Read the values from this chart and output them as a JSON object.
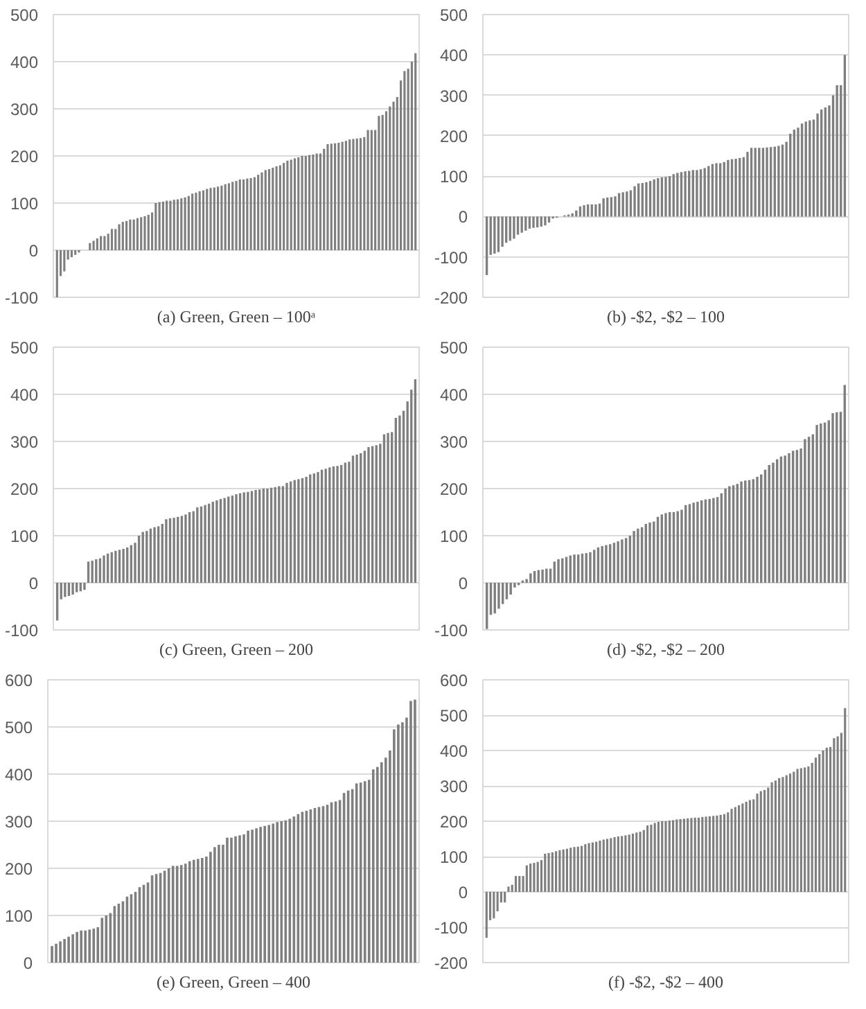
{
  "chart_data": [
    {
      "type": "bar",
      "title": "(a) Green, Green – 100ᵃ",
      "color": "#7f7f7f",
      "ylim": [
        -100,
        500
      ],
      "yticks": [
        -100,
        0,
        100,
        200,
        300,
        400,
        500
      ],
      "grid": "y",
      "tick_labels": "y",
      "values": [
        -100,
        -55,
        -45,
        -20,
        -15,
        -10,
        -5,
        0,
        0,
        15,
        20,
        25,
        30,
        30,
        35,
        45,
        45,
        55,
        60,
        62,
        65,
        65,
        68,
        70,
        72,
        75,
        80,
        100,
        102,
        103,
        105,
        105,
        107,
        108,
        110,
        112,
        115,
        120,
        122,
        125,
        127,
        130,
        132,
        133,
        135,
        137,
        140,
        142,
        145,
        147,
        150,
        150,
        152,
        153,
        155,
        160,
        165,
        170,
        172,
        175,
        178,
        180,
        185,
        190,
        192,
        195,
        197,
        200,
        200,
        202,
        203,
        205,
        205,
        215,
        225,
        226,
        227,
        228,
        230,
        232,
        235,
        236,
        237,
        238,
        240,
        255,
        255,
        255,
        285,
        287,
        295,
        305,
        315,
        325,
        360,
        380,
        385,
        400,
        418
      ]
    },
    {
      "type": "bar",
      "title": "(b) -$2, -$2 – 100",
      "color": "#7f7f7f",
      "ylim": [
        -200,
        500
      ],
      "yticks": [
        -200,
        -100,
        0,
        100,
        200,
        300,
        400,
        500
      ],
      "grid": "y",
      "tick_labels": "y",
      "values": [
        -145,
        -95,
        -92,
        -88,
        -75,
        -65,
        -60,
        -55,
        -45,
        -40,
        -35,
        -30,
        -28,
        -27,
        -25,
        -22,
        -15,
        -5,
        -3,
        0,
        3,
        5,
        8,
        15,
        25,
        28,
        30,
        30,
        30,
        32,
        45,
        47,
        48,
        50,
        58,
        60,
        62,
        65,
        75,
        82,
        83,
        85,
        88,
        92,
        95,
        97,
        98,
        100,
        105,
        108,
        110,
        112,
        113,
        115,
        115,
        117,
        120,
        125,
        130,
        132,
        132,
        135,
        140,
        142,
        143,
        145,
        147,
        160,
        170,
        170,
        170,
        170,
        171,
        172,
        173,
        175,
        178,
        185,
        205,
        215,
        220,
        230,
        235,
        238,
        240,
        255,
        265,
        270,
        275,
        300,
        325,
        325,
        400
      ]
    },
    {
      "type": "bar",
      "title": "(c) Green, Green – 200",
      "color": "#7f7f7f",
      "ylim": [
        -100,
        500
      ],
      "yticks": [
        -100,
        0,
        100,
        200,
        300,
        400,
        500
      ],
      "grid": "y",
      "tick_labels": "y",
      "values": [
        -80,
        -35,
        -30,
        -28,
        -25,
        -20,
        -18,
        -15,
        45,
        47,
        50,
        52,
        58,
        62,
        65,
        68,
        70,
        72,
        75,
        80,
        85,
        100,
        108,
        110,
        115,
        118,
        120,
        125,
        135,
        137,
        138,
        140,
        142,
        145,
        150,
        152,
        160,
        162,
        165,
        168,
        172,
        175,
        178,
        180,
        183,
        185,
        188,
        190,
        192,
        193,
        195,
        197,
        198,
        200,
        200,
        202,
        203,
        205,
        205,
        212,
        215,
        218,
        220,
        222,
        225,
        230,
        232,
        235,
        240,
        242,
        245,
        247,
        248,
        250,
        255,
        257,
        270,
        272,
        275,
        280,
        288,
        290,
        292,
        295,
        315,
        318,
        320,
        350,
        355,
        365,
        385,
        410,
        432
      ]
    },
    {
      "type": "bar",
      "title": "(d) -$2, -$2 – 200",
      "color": "#7f7f7f",
      "ylim": [
        -100,
        500
      ],
      "yticks": [
        -100,
        0,
        100,
        200,
        300,
        400,
        500
      ],
      "grid": "y",
      "tick_labels": "y",
      "values": [
        -98,
        -68,
        -65,
        -55,
        -45,
        -35,
        -25,
        -10,
        -5,
        5,
        8,
        20,
        25,
        27,
        28,
        30,
        30,
        45,
        50,
        52,
        55,
        58,
        60,
        60,
        62,
        63,
        65,
        70,
        75,
        78,
        80,
        82,
        85,
        88,
        92,
        95,
        100,
        110,
        115,
        118,
        125,
        128,
        130,
        140,
        145,
        148,
        150,
        150,
        152,
        155,
        165,
        167,
        170,
        172,
        175,
        177,
        178,
        180,
        182,
        190,
        200,
        205,
        207,
        210,
        215,
        217,
        218,
        220,
        225,
        230,
        240,
        250,
        255,
        262,
        268,
        270,
        275,
        280,
        282,
        285,
        305,
        310,
        315,
        335,
        338,
        340,
        345,
        360,
        362,
        363,
        420
      ]
    },
    {
      "type": "bar",
      "title": "(e) Green, Green – 400",
      "color": "#7f7f7f",
      "ylim": [
        0,
        600
      ],
      "yticks": [
        0,
        100,
        200,
        300,
        400,
        500,
        600
      ],
      "grid": "y",
      "tick_labels": "y",
      "values": [
        35,
        40,
        45,
        50,
        55,
        60,
        65,
        68,
        68,
        70,
        72,
        75,
        95,
        100,
        105,
        120,
        125,
        130,
        140,
        145,
        150,
        160,
        165,
        170,
        185,
        188,
        190,
        195,
        200,
        205,
        205,
        207,
        210,
        215,
        218,
        220,
        222,
        225,
        235,
        245,
        250,
        250,
        265,
        265,
        268,
        270,
        272,
        280,
        282,
        285,
        288,
        290,
        292,
        295,
        298,
        300,
        302,
        305,
        310,
        315,
        320,
        322,
        325,
        328,
        330,
        332,
        335,
        340,
        342,
        345,
        360,
        365,
        368,
        380,
        382,
        385,
        388,
        410,
        415,
        425,
        435,
        450,
        495,
        505,
        510,
        520,
        555,
        558
      ]
    },
    {
      "type": "bar",
      "title": "(f) -$2, -$2 – 400",
      "color": "#7f7f7f",
      "ylim": [
        -200,
        600
      ],
      "yticks": [
        -200,
        -100,
        0,
        100,
        200,
        300,
        400,
        500,
        600
      ],
      "grid": "y",
      "tick_labels": "y",
      "values": [
        -130,
        -80,
        -75,
        -55,
        -30,
        -30,
        15,
        20,
        45,
        45,
        45,
        75,
        80,
        82,
        85,
        90,
        108,
        110,
        112,
        115,
        118,
        120,
        122,
        125,
        127,
        128,
        130,
        135,
        138,
        140,
        142,
        145,
        148,
        150,
        152,
        155,
        157,
        158,
        160,
        162,
        165,
        168,
        170,
        175,
        188,
        190,
        195,
        198,
        200,
        200,
        202,
        203,
        205,
        206,
        207,
        208,
        209,
        210,
        210,
        212,
        213,
        214,
        215,
        216,
        218,
        220,
        225,
        235,
        240,
        245,
        250,
        255,
        260,
        262,
        278,
        285,
        288,
        295,
        310,
        315,
        322,
        325,
        330,
        335,
        340,
        348,
        350,
        352,
        355,
        365,
        380,
        390,
        400,
        408,
        410,
        435,
        440,
        450,
        520
      ]
    }
  ]
}
